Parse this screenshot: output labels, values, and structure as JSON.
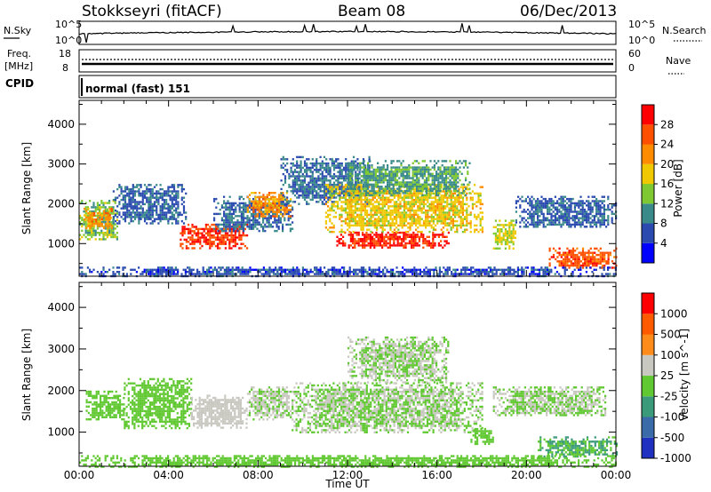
{
  "header": {
    "station": "Stokkseyri (fitACF)",
    "beam": "Beam 08",
    "date": "06/Dec/2013"
  },
  "noise_panel": {
    "left_label": "N.Sky",
    "right_label": "N.Search",
    "left_ticks": [
      "10^5",
      "10^0"
    ],
    "right_ticks": [
      "10^5",
      "10^0"
    ]
  },
  "freq_panel": {
    "left_label_1": "Freq.",
    "left_label_2": "[MHz]",
    "right_label": "Nave",
    "left_ticks": [
      "18",
      "8"
    ],
    "right_ticks": [
      "60",
      "0"
    ],
    "cpid_label": "CPID",
    "cpid_value": "normal (fast) 151"
  },
  "power_panel": {
    "ylabel": "Slant Range [km]",
    "yticks": [
      "4000",
      "3000",
      "2000",
      "1000"
    ],
    "colorbar_label": "Power [dB]",
    "colorbar_ticks": [
      "28",
      "24",
      "20",
      "16",
      "12",
      "8",
      "4"
    ],
    "colors": [
      "#0000ff",
      "#2a4ab0",
      "#3a8a8a",
      "#7ec832",
      "#f0c800",
      "#ff8c00",
      "#ff5000",
      "#ff0000"
    ]
  },
  "velocity_panel": {
    "ylabel": "Slant Range [km]",
    "yticks": [
      "4000",
      "3000",
      "2000",
      "1000"
    ],
    "colorbar_label": "Velocity [m s^-1]",
    "colorbar_ticks": [
      "1000",
      "500",
      "100",
      "25",
      "-25",
      "-100",
      "-500",
      "-1000"
    ],
    "colors": [
      "#2030c0",
      "#3a6aa8",
      "#3a9a7a",
      "#60c830",
      "#c8c8c0",
      "#ff8c1a",
      "#ff5a00",
      "#ff0000"
    ]
  },
  "xaxis": {
    "label": "Time UT",
    "ticks": [
      "00:00",
      "04:00",
      "08:00",
      "12:00",
      "16:00",
      "20:00",
      "00:00"
    ]
  },
  "chart_data": {
    "type": "heatmap",
    "title": "Stokkseyri (fitACF)",
    "xlabel": "Time UT",
    "ylabel": "Slant Range [km]",
    "x_range_hours": [
      0,
      24
    ],
    "y_range_km": [
      180,
      4600
    ],
    "panels": [
      {
        "name": "Power [dB]",
        "colorbar_range": [
          0,
          32
        ],
        "regions": [
          {
            "t": [
              0.0,
              1.7
            ],
            "r": [
              1100,
              2100
            ],
            "value": 14
          },
          {
            "t": [
              0.2,
              1.5
            ],
            "r": [
              1400,
              1900
            ],
            "value": 22
          },
          {
            "t": [
              1.5,
              4.8
            ],
            "r": [
              1500,
              2500
            ],
            "value": 7
          },
          {
            "t": [
              4.5,
              7.5
            ],
            "r": [
              900,
              1500
            ],
            "value": 28
          },
          {
            "t": [
              6.0,
              9.5
            ],
            "r": [
              1300,
              2200
            ],
            "value": 8
          },
          {
            "t": [
              7.5,
              9.5
            ],
            "r": [
              1700,
              2300
            ],
            "value": 22
          },
          {
            "t": [
              9.0,
              13.0
            ],
            "r": [
              2000,
              3200
            ],
            "value": 8
          },
          {
            "t": [
              11.5,
              16.5
            ],
            "r": [
              900,
              1300
            ],
            "value": 29
          },
          {
            "t": [
              11.0,
              18.0
            ],
            "r": [
              1300,
              2500
            ],
            "value": 18
          },
          {
            "t": [
              12.0,
              17.5
            ],
            "r": [
              2200,
              3100
            ],
            "value": 11
          },
          {
            "t": [
              18.5,
              19.5
            ],
            "r": [
              900,
              1600
            ],
            "value": 17
          },
          {
            "t": [
              19.5,
              24.0
            ],
            "r": [
              1400,
              2200
            ],
            "value": 7
          },
          {
            "t": [
              21.0,
              24.0
            ],
            "r": [
              400,
              900
            ],
            "value": 26
          },
          {
            "t": [
              0.0,
              24.0
            ],
            "r": [
              180,
              420
            ],
            "value": 6
          }
        ]
      },
      {
        "name": "Velocity [m s^-1]",
        "colorbar_range": [
          -1200,
          1200
        ],
        "regions": [
          {
            "t": [
              0.3,
              2.0
            ],
            "r": [
              1300,
              2000
            ],
            "value": -120
          },
          {
            "t": [
              2.0,
              5.0
            ],
            "r": [
              1100,
              2300
            ],
            "value": -200
          },
          {
            "t": [
              5.0,
              7.5
            ],
            "r": [
              1100,
              1900
            ],
            "value": 80
          },
          {
            "t": [
              7.5,
              9.5
            ],
            "r": [
              1300,
              2100
            ],
            "value": 20
          },
          {
            "t": [
              9.5,
              18.0
            ],
            "r": [
              1000,
              2200
            ],
            "value": 0
          },
          {
            "t": [
              12.0,
              16.5
            ],
            "r": [
              2200,
              3300
            ],
            "value": 5
          },
          {
            "t": [
              17.5,
              18.5
            ],
            "r": [
              700,
              1100
            ],
            "value": -150
          },
          {
            "t": [
              18.5,
              23.5
            ],
            "r": [
              1400,
              2100
            ],
            "value": 0
          },
          {
            "t": [
              20.5,
              24.0
            ],
            "r": [
              400,
              900
            ],
            "value": -300
          },
          {
            "t": [
              0.0,
              24.0
            ],
            "r": [
              180,
              450
            ],
            "value": -60
          }
        ]
      }
    ]
  }
}
